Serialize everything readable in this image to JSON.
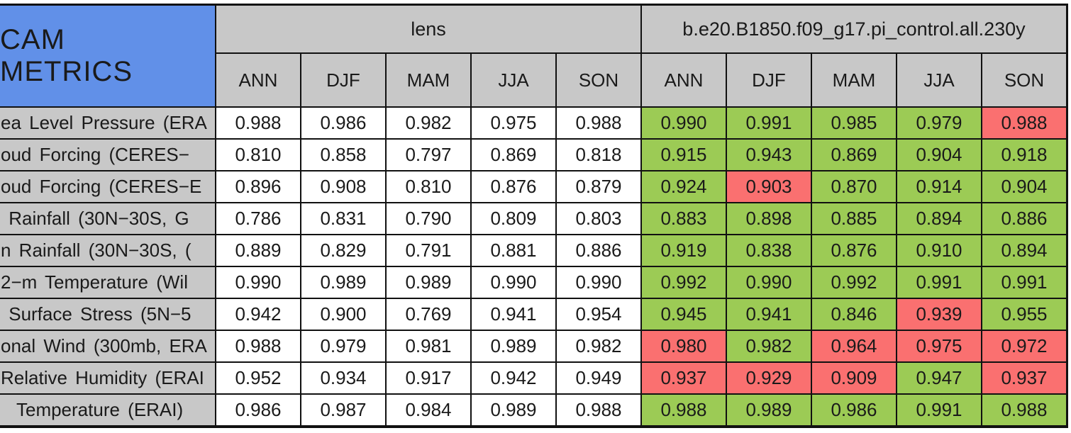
{
  "chart_data": {
    "type": "table",
    "title": "CAM METRICS",
    "groups": [
      {
        "name": "lens"
      },
      {
        "name": "b.e20.B1850.f09_g17.pi_control.all.230y"
      }
    ],
    "seasons": [
      "ANN",
      "DJF",
      "MAM",
      "JJA",
      "SON"
    ],
    "rows": [
      {
        "label": "ea Level Pressure (ERA",
        "lens": [
          "0.988",
          "0.986",
          "0.982",
          "0.975",
          "0.988"
        ],
        "control": [
          "0.990",
          "0.991",
          "0.985",
          "0.979",
          "0.988"
        ],
        "control_status": [
          "good",
          "good",
          "good",
          "good",
          "bad"
        ]
      },
      {
        "label": "oud Forcing (CERES−",
        "lens": [
          "0.810",
          "0.858",
          "0.797",
          "0.869",
          "0.818"
        ],
        "control": [
          "0.915",
          "0.943",
          "0.869",
          "0.904",
          "0.918"
        ],
        "control_status": [
          "good",
          "good",
          "good",
          "good",
          "good"
        ]
      },
      {
        "label": "oud Forcing (CERES−E",
        "lens": [
          "0.896",
          "0.908",
          "0.810",
          "0.876",
          "0.879"
        ],
        "control": [
          "0.924",
          "0.903",
          "0.870",
          "0.914",
          "0.904"
        ],
        "control_status": [
          "good",
          "bad",
          "good",
          "good",
          "good"
        ]
      },
      {
        "label": " Rainfall (30N−30S, G",
        "lens": [
          "0.786",
          "0.831",
          "0.790",
          "0.809",
          "0.803"
        ],
        "control": [
          "0.883",
          "0.898",
          "0.885",
          "0.894",
          "0.886"
        ],
        "control_status": [
          "good",
          "good",
          "good",
          "good",
          "good"
        ]
      },
      {
        "label": "n Rainfall (30N−30S, (",
        "lens": [
          "0.889",
          "0.829",
          "0.791",
          "0.881",
          "0.886"
        ],
        "control": [
          "0.919",
          "0.838",
          "0.876",
          "0.910",
          "0.894"
        ],
        "control_status": [
          "good",
          "good",
          "good",
          "good",
          "good"
        ]
      },
      {
        "label": "2−m Temperature (Wil",
        "lens": [
          "0.990",
          "0.989",
          "0.989",
          "0.990",
          "0.990"
        ],
        "control": [
          "0.992",
          "0.990",
          "0.992",
          "0.991",
          "0.991"
        ],
        "control_status": [
          "good",
          "good",
          "good",
          "good",
          "good"
        ]
      },
      {
        "label": " Surface Stress (5N−5",
        "lens": [
          "0.942",
          "0.900",
          "0.769",
          "0.941",
          "0.954"
        ],
        "control": [
          "0.945",
          "0.941",
          "0.846",
          "0.939",
          "0.955"
        ],
        "control_status": [
          "good",
          "good",
          "good",
          "bad",
          "good"
        ]
      },
      {
        "label": "onal Wind (300mb, ERA",
        "lens": [
          "0.988",
          "0.979",
          "0.981",
          "0.989",
          "0.982"
        ],
        "control": [
          "0.980",
          "0.982",
          "0.964",
          "0.975",
          "0.972"
        ],
        "control_status": [
          "bad",
          "good",
          "bad",
          "bad",
          "bad"
        ]
      },
      {
        "label": "Relative Humidity (ERAI",
        "lens": [
          "0.952",
          "0.934",
          "0.917",
          "0.942",
          "0.949"
        ],
        "control": [
          "0.937",
          "0.929",
          "0.909",
          "0.947",
          "0.937"
        ],
        "control_status": [
          "bad",
          "bad",
          "bad",
          "good",
          "bad"
        ]
      },
      {
        "label": "  Temperature (ERAI)",
        "lens": [
          "0.986",
          "0.987",
          "0.984",
          "0.989",
          "0.988"
        ],
        "control": [
          "0.988",
          "0.989",
          "0.986",
          "0.991",
          "0.988"
        ],
        "control_status": [
          "good",
          "good",
          "good",
          "good",
          "good"
        ]
      }
    ],
    "colors": {
      "title_bg": "#6190e8",
      "header_bg": "#c8c8c8",
      "good_green": "#9ccb55",
      "bad_red": "#fa7070",
      "lens_cell_bg": "#ffffff",
      "grid_line": "#111111"
    }
  }
}
